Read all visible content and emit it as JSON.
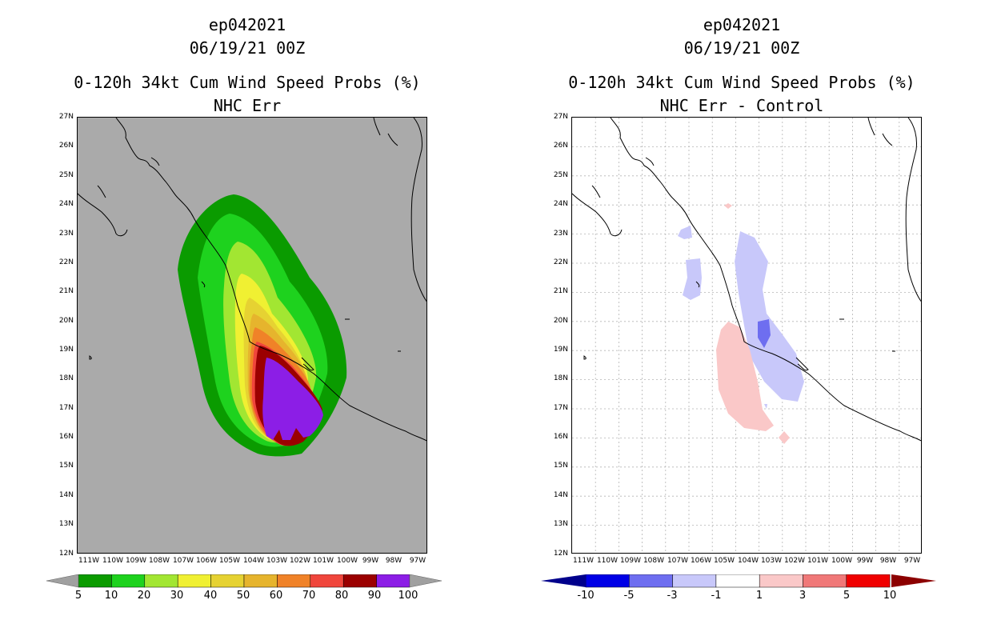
{
  "left": {
    "title_line1": "ep042021",
    "title_line2": "06/19/21 00Z",
    "title_line3": "0-120h 34kt Cum Wind Speed Probs (%)",
    "title_line4": "NHC Err",
    "colorbar": {
      "labels": [
        "5",
        "10",
        "20",
        "30",
        "40",
        "50",
        "60",
        "70",
        "80",
        "90",
        "100"
      ],
      "colors": [
        "#0a9b00",
        "#1ed21e",
        "#a2e632",
        "#f0f032",
        "#e6d232",
        "#e6b42d",
        "#f08228",
        "#f0463c",
        "#9b0000",
        "#8c1ee6"
      ],
      "end_color": "#a0a0a0"
    },
    "background_color": "#aaaaaa"
  },
  "right": {
    "title_line1": "ep042021",
    "title_line2": "06/19/21 00Z",
    "title_line3": "0-120h 34kt Cum Wind Speed Probs (%)",
    "title_line4": "NHC Err - Control",
    "colorbar": {
      "labels": [
        "-10",
        "-5",
        "-3",
        "-1",
        "1",
        "3",
        "5",
        "10"
      ],
      "colors": [
        "#0000e6",
        "#6e6ef0",
        "#c8c8fa",
        "#ffffff",
        "#fac8c8",
        "#f07878",
        "#f00000"
      ],
      "left_end": "#00008c",
      "right_end": "#8c0000"
    }
  },
  "axes": {
    "lat_labels": [
      "27N",
      "26N",
      "25N",
      "24N",
      "23N",
      "22N",
      "21N",
      "20N",
      "19N",
      "18N",
      "17N",
      "16N",
      "15N",
      "14N",
      "13N",
      "12N"
    ],
    "lon_labels": [
      "111W",
      "110W",
      "109W",
      "108W",
      "107W",
      "106W",
      "105W",
      "104W",
      "103W",
      "102W",
      "101W",
      "100W",
      "99W",
      "98W",
      "97W"
    ]
  }
}
